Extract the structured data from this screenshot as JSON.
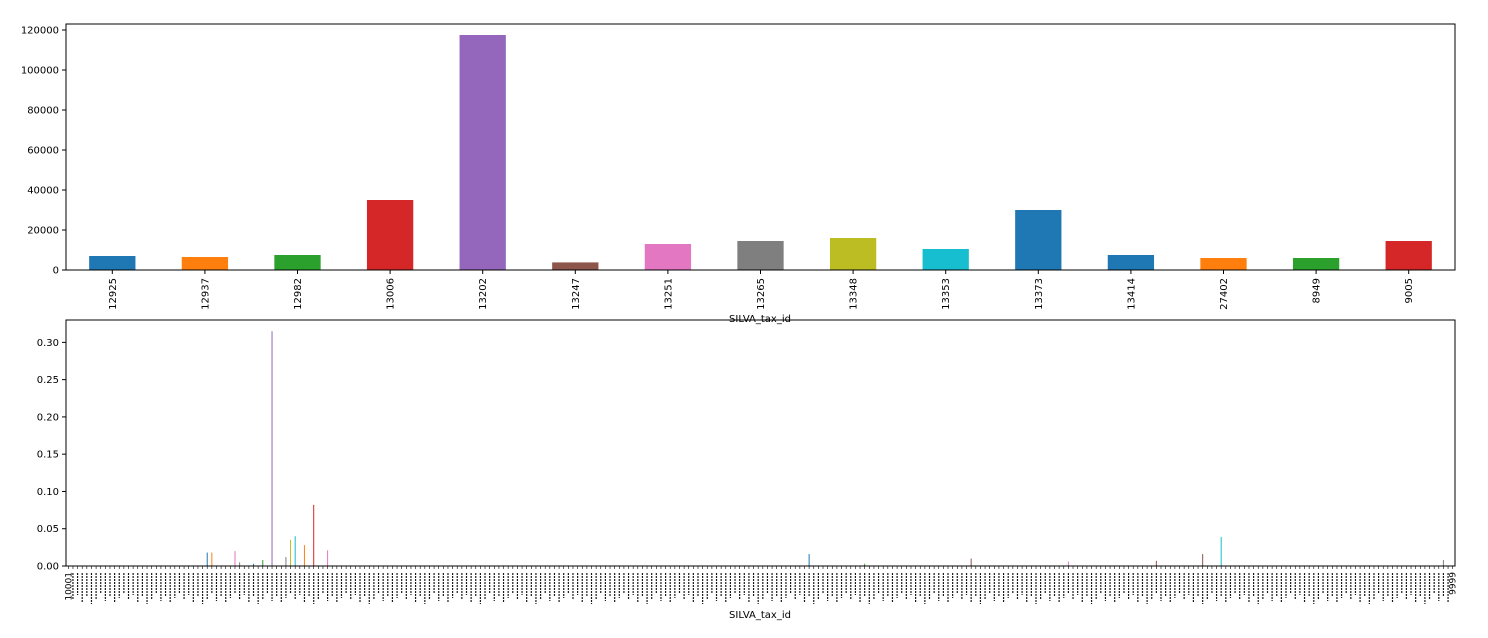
{
  "chart_data": [
    {
      "type": "bar",
      "xlabel": "SILVA_tax_id",
      "ylabel": "",
      "ylim": [
        0,
        123000
      ],
      "yticks": [
        "0",
        "20000",
        "40000",
        "60000",
        "80000",
        "100000",
        "120000"
      ],
      "grid": false,
      "categories": [
        "12925",
        "12937",
        "12982",
        "13006",
        "13202",
        "13247",
        "13251",
        "13265",
        "13348",
        "13353",
        "13373",
        "13414",
        "27402",
        "8949",
        "9005"
      ],
      "values": [
        7000,
        6500,
        7500,
        35000,
        117500,
        3800,
        13000,
        14500,
        16000,
        10500,
        30000,
        7500,
        6000,
        6000,
        14500
      ],
      "colors": [
        "#1f77b4",
        "#ff7f0e",
        "#2ca02c",
        "#d62728",
        "#9467bd",
        "#8c564b",
        "#e377c2",
        "#7f7f7f",
        "#bcbd22",
        "#17becf",
        "#1f77b4",
        "#1f77b4",
        "#ff7f0e",
        "#2ca02c",
        "#d62728"
      ]
    },
    {
      "type": "bar",
      "xlabel": "SILVA_tax_id",
      "ylabel": "",
      "ylim": [
        0,
        0.33
      ],
      "yticks": [
        "0.00",
        "0.05",
        "0.10",
        "0.15",
        "0.20",
        "0.25",
        "0.30"
      ],
      "grid": false,
      "category_count": 300,
      "first_label": "10001",
      "last_label": "9999",
      "palette": [
        "#1f77b4",
        "#ff7f0e",
        "#2ca02c",
        "#d62728",
        "#9467bd",
        "#8c564b",
        "#e377c2",
        "#7f7f7f",
        "#bcbd22",
        "#17becf"
      ],
      "nonzero": [
        {
          "index": 30,
          "value": 0.018
        },
        {
          "index": 31,
          "value": 0.018
        },
        {
          "index": 36,
          "value": 0.02
        },
        {
          "index": 37,
          "value": 0.005
        },
        {
          "index": 40,
          "value": 0.003
        },
        {
          "index": 42,
          "value": 0.008
        },
        {
          "index": 44,
          "value": 0.315
        },
        {
          "index": 47,
          "value": 0.012
        },
        {
          "index": 48,
          "value": 0.035
        },
        {
          "index": 49,
          "value": 0.04
        },
        {
          "index": 51,
          "value": 0.028
        },
        {
          "index": 53,
          "value": 0.082
        },
        {
          "index": 56,
          "value": 0.021
        },
        {
          "index": 160,
          "value": 0.016
        },
        {
          "index": 172,
          "value": 0.003
        },
        {
          "index": 195,
          "value": 0.01
        },
        {
          "index": 216,
          "value": 0.006
        },
        {
          "index": 235,
          "value": 0.007
        },
        {
          "index": 245,
          "value": 0.016
        },
        {
          "index": 249,
          "value": 0.039
        },
        {
          "index": 297,
          "value": 0.008
        }
      ]
    }
  ]
}
